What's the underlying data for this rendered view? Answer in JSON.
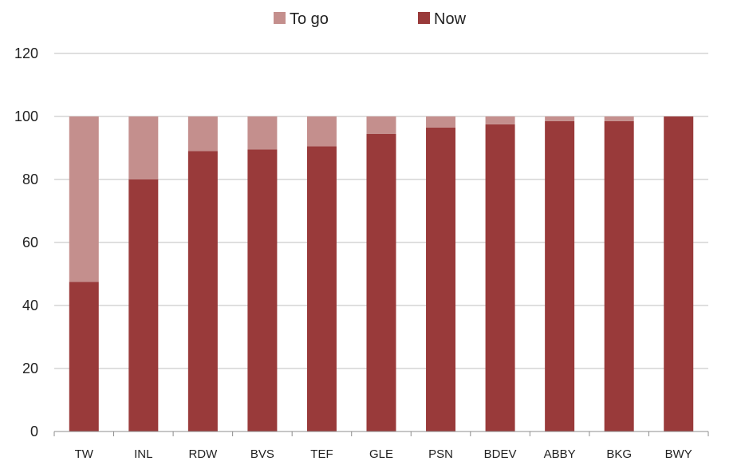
{
  "chart_data": {
    "type": "bar",
    "stacked": true,
    "categories": [
      "TW",
      "INL",
      "RDW",
      "BVS",
      "TEF",
      "GLE",
      "PSN",
      "BDEV",
      "ABBY",
      "BKG",
      "BWY"
    ],
    "series": [
      {
        "name": "Now",
        "color": "#993A3A",
        "values": [
          47.5,
          80,
          89,
          89.5,
          90.5,
          94.5,
          96.5,
          97.5,
          98.5,
          98.5,
          100
        ]
      },
      {
        "name": "To go",
        "color": "#C48F8D",
        "values": [
          52.5,
          20,
          11,
          10.5,
          9.5,
          5.5,
          3.5,
          2.5,
          1.5,
          1.5,
          0
        ]
      }
    ],
    "title": "",
    "xlabel": "",
    "ylabel": "",
    "ylim": [
      0,
      120
    ],
    "yticks": [
      0,
      20,
      40,
      60,
      80,
      100,
      120
    ],
    "grid": true,
    "legend": {
      "placement": "top-center",
      "order": [
        "To go",
        "Now"
      ]
    }
  }
}
